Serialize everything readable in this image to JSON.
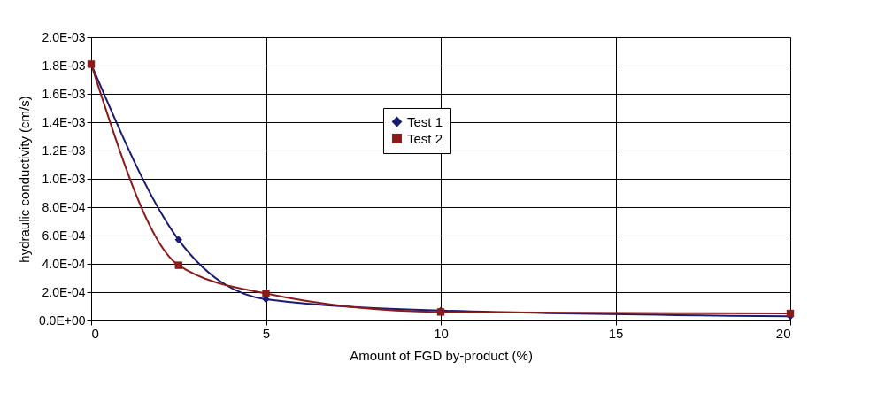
{
  "chart_data": {
    "type": "line",
    "xlabel": "Amount of FGD by-product (%)",
    "ylabel": "hydraulic conductivity (cm/s)",
    "x": [
      0,
      2.5,
      5,
      10,
      20
    ],
    "series": [
      {
        "name": "Test 1",
        "color": "#1a1a6e",
        "marker": "diamond",
        "values": [
          0.00181,
          0.00057,
          0.00015,
          7e-05,
          3e-05
        ]
      },
      {
        "name": "Test 2",
        "color": "#8b1a1a",
        "marker": "square",
        "values": [
          0.00181,
          0.00039,
          0.00019,
          6e-05,
          5e-05
        ]
      }
    ],
    "xlim": [
      0,
      20
    ],
    "xticks": [
      0,
      5,
      10,
      15,
      20
    ],
    "ylim": [
      0,
      0.002
    ],
    "yticks": [
      {
        "value": 0,
        "label": "0.0E+00"
      },
      {
        "value": 0.0002,
        "label": "2.0E-04"
      },
      {
        "value": 0.0004,
        "label": "4.0E-04"
      },
      {
        "value": 0.0006,
        "label": "6.0E-04"
      },
      {
        "value": 0.0008,
        "label": "8.0E-04"
      },
      {
        "value": 0.001,
        "label": "1.0E-03"
      },
      {
        "value": 0.0012,
        "label": "1.2E-03"
      },
      {
        "value": 0.0014,
        "label": "1.4E-03"
      },
      {
        "value": 0.0016,
        "label": "1.6E-03"
      },
      {
        "value": 0.0018,
        "label": "1.8E-03"
      },
      {
        "value": 0.002,
        "label": "2.0E-03"
      }
    ],
    "grid": true,
    "legend": "top",
    "line_style": "solid"
  }
}
